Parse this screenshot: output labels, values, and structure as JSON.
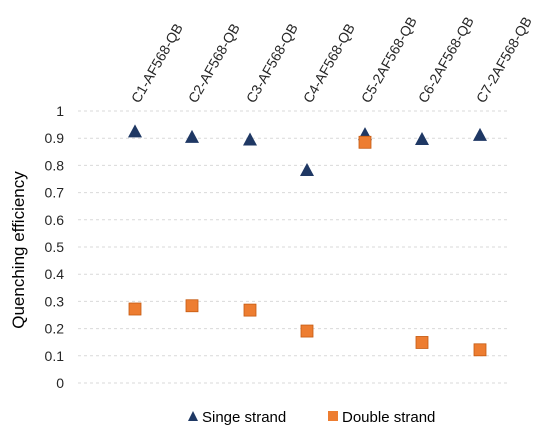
{
  "chart_data": {
    "type": "scatter",
    "categories": [
      "C1-AF568-QB",
      "C2-AF568-QB",
      "C3-AF568-QB",
      "C4-AF568-QB",
      "C5-2AF568-QB",
      "C6-2AF568-QB",
      "C7-2AF568-QB"
    ],
    "series": [
      {
        "name": "Singe strand",
        "marker": "triangle",
        "color": "#1f3864",
        "values": [
          0.925,
          0.905,
          0.895,
          0.783,
          0.915,
          0.897,
          0.912
        ]
      },
      {
        "name": "Double strand",
        "marker": "square",
        "color": "#ed7d31",
        "values": [
          0.272,
          0.284,
          0.268,
          0.191,
          0.885,
          0.149,
          0.122
        ]
      }
    ],
    "ylabel": "Quenching efficiency",
    "xlabel": "",
    "ylim": [
      0,
      1
    ],
    "yticks": [
      "0",
      "0.1",
      "0.2",
      "0.3",
      "0.4",
      "0.5",
      "0.6",
      "0.7",
      "0.8",
      "0.9",
      "1"
    ],
    "grid": true,
    "legend": "bottom",
    "x_labels_position": "top"
  }
}
